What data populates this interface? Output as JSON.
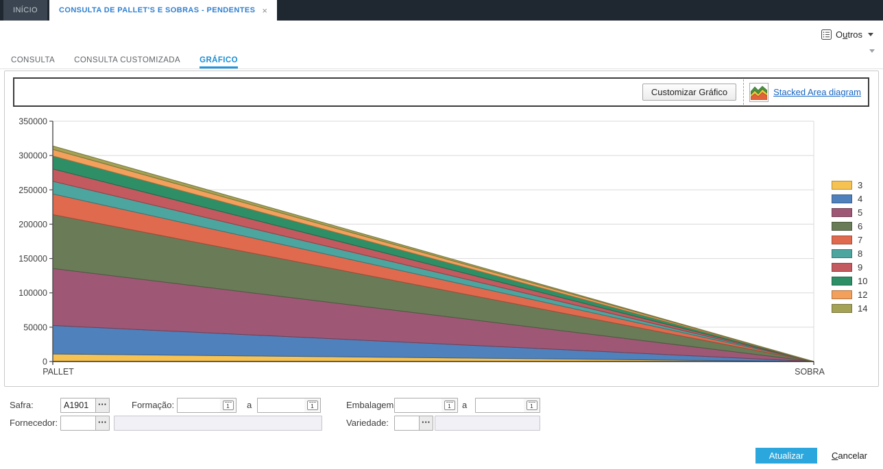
{
  "window": {
    "tabs": [
      {
        "label": "INÍCIO"
      },
      {
        "label": "CONSULTA DE PALLET'S E SOBRAS - PENDENTES"
      }
    ]
  },
  "ribbon": {
    "outros": {
      "pre": "O",
      "mnemonic": "u",
      "post": "tros"
    }
  },
  "subtabs": {
    "items": [
      {
        "label": "CONSULTA"
      },
      {
        "label": "CONSULTA CUSTOMIZADA"
      },
      {
        "label": "GRÁFICO"
      }
    ]
  },
  "chart_toolbar": {
    "customize_button": "Customizar Gráfico",
    "diagram_link": "Stacked Area diagram"
  },
  "chart_data": {
    "type": "area",
    "stacked": true,
    "categories": [
      "PALLET",
      "SOBRA"
    ],
    "series": [
      {
        "name": "3",
        "color": "#F6C251",
        "values": [
          11000,
          0
        ]
      },
      {
        "name": "4",
        "color": "#4F81BD",
        "values": [
          41500,
          0
        ]
      },
      {
        "name": "5",
        "color": "#9E5876",
        "values": [
          83000,
          0
        ]
      },
      {
        "name": "6",
        "color": "#6A7B58",
        "values": [
          78500,
          0
        ]
      },
      {
        "name": "7",
        "color": "#E06A4E",
        "values": [
          30000,
          0
        ]
      },
      {
        "name": "8",
        "color": "#4DA5A0",
        "values": [
          18500,
          0
        ]
      },
      {
        "name": "9",
        "color": "#C25A5F",
        "values": [
          18000,
          0
        ]
      },
      {
        "name": "10",
        "color": "#2E8F66",
        "values": [
          19000,
          0
        ]
      },
      {
        "name": "12",
        "color": "#F3A05C",
        "values": [
          9500,
          0
        ]
      },
      {
        "name": "14",
        "color": "#A4A254",
        "values": [
          5000,
          0
        ]
      }
    ],
    "title": "",
    "xlabel": "",
    "ylabel": "",
    "ylim": [
      0,
      350000
    ],
    "ytick_interval": 50000,
    "yticks": [
      "0",
      "50000",
      "100000",
      "150000",
      "200000",
      "250000",
      "300000",
      "350000"
    ],
    "grid": true,
    "legend_position": "right"
  },
  "form": {
    "safra": {
      "label": "Safra:",
      "value": "A1901"
    },
    "formacao": {
      "label": "Formação:",
      "from": "",
      "to": "",
      "separator": "a"
    },
    "embalagem": {
      "label": "Embalagem:",
      "from": "",
      "to": "",
      "separator": "a"
    },
    "fornecedor": {
      "label": "Fornecedor:",
      "value": "",
      "description": ""
    },
    "variedade": {
      "label": "Variedade:",
      "value": "",
      "description": ""
    }
  },
  "actions": {
    "update": "Atualizar",
    "cancel": {
      "mnemonic": "C",
      "post": "ancelar"
    }
  }
}
